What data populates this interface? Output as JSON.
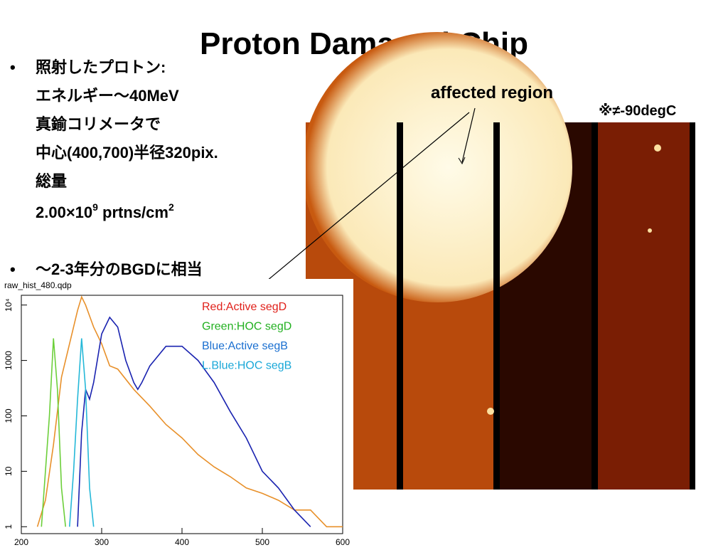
{
  "title": "Proton Damaged Chip",
  "bullets": [
    {
      "lines": [
        "照射したプロトン:",
        "エネルギー～40MeV",
        "真鍮コリメータで",
        "中心(400,700)半径320pix.",
        "総量"
      ],
      "dose": [
        "2.00×10",
        "9",
        " prtns/cm",
        "2"
      ]
    },
    {
      "lines": [
        "～2-3年分のBGDに相当"
      ]
    }
  ],
  "annotations": {
    "region": "affected region",
    "temperature": "※≠-90degC"
  },
  "chart_data": {
    "type": "line",
    "title": "raw_hist_480.qdp",
    "log_y": true,
    "xlim": [
      200,
      600
    ],
    "xticks": [
      200,
      300,
      400,
      500,
      600
    ],
    "ylim": [
      0.75,
      15000
    ],
    "yticks": [
      1,
      10,
      100,
      1000,
      {
        "value": 10000,
        "label": "10⁴"
      }
    ],
    "series": [
      {
        "name": "Red:Active segD",
        "color": "#e8902a",
        "x": [
          220,
          230,
          240,
          250,
          260,
          270,
          275,
          280,
          290,
          300,
          310,
          320,
          340,
          360,
          380,
          400,
          420,
          440,
          460,
          480,
          500,
          520,
          540,
          560,
          580,
          600
        ],
        "values": [
          1,
          3,
          30,
          500,
          2000,
          8000,
          14000,
          10000,
          4000,
          2000,
          800,
          700,
          300,
          150,
          70,
          40,
          20,
          12,
          8,
          5,
          4,
          3,
          2,
          2,
          1,
          1
        ]
      },
      {
        "name": "Green:HOC segD",
        "color": "#6ccf3a",
        "x": [
          225,
          230,
          235,
          240,
          245,
          250,
          255
        ],
        "values": [
          1,
          10,
          100,
          2500,
          300,
          5,
          1
        ]
      },
      {
        "name": "Blue:Active segB",
        "color": "#1a23b0",
        "x": [
          270,
          275,
          280,
          285,
          290,
          300,
          310,
          320,
          330,
          340,
          345,
          350,
          360,
          380,
          400,
          420,
          440,
          460,
          480,
          500,
          520,
          540,
          560
        ],
        "values": [
          1,
          50,
          300,
          200,
          400,
          3000,
          6000,
          4000,
          1000,
          400,
          300,
          400,
          800,
          1800,
          1800,
          1000,
          400,
          120,
          40,
          10,
          5,
          2,
          1
        ]
      },
      {
        "name": "L.Blue:HOC segB",
        "color": "#25b8d8",
        "x": [
          260,
          265,
          270,
          275,
          280,
          285,
          290
        ],
        "values": [
          1,
          10,
          200,
          2500,
          300,
          5,
          1
        ]
      }
    ],
    "legend_colors": [
      "#e0201a",
      "#22b020",
      "#1a6fd0",
      "#1aa8d8"
    ]
  }
}
